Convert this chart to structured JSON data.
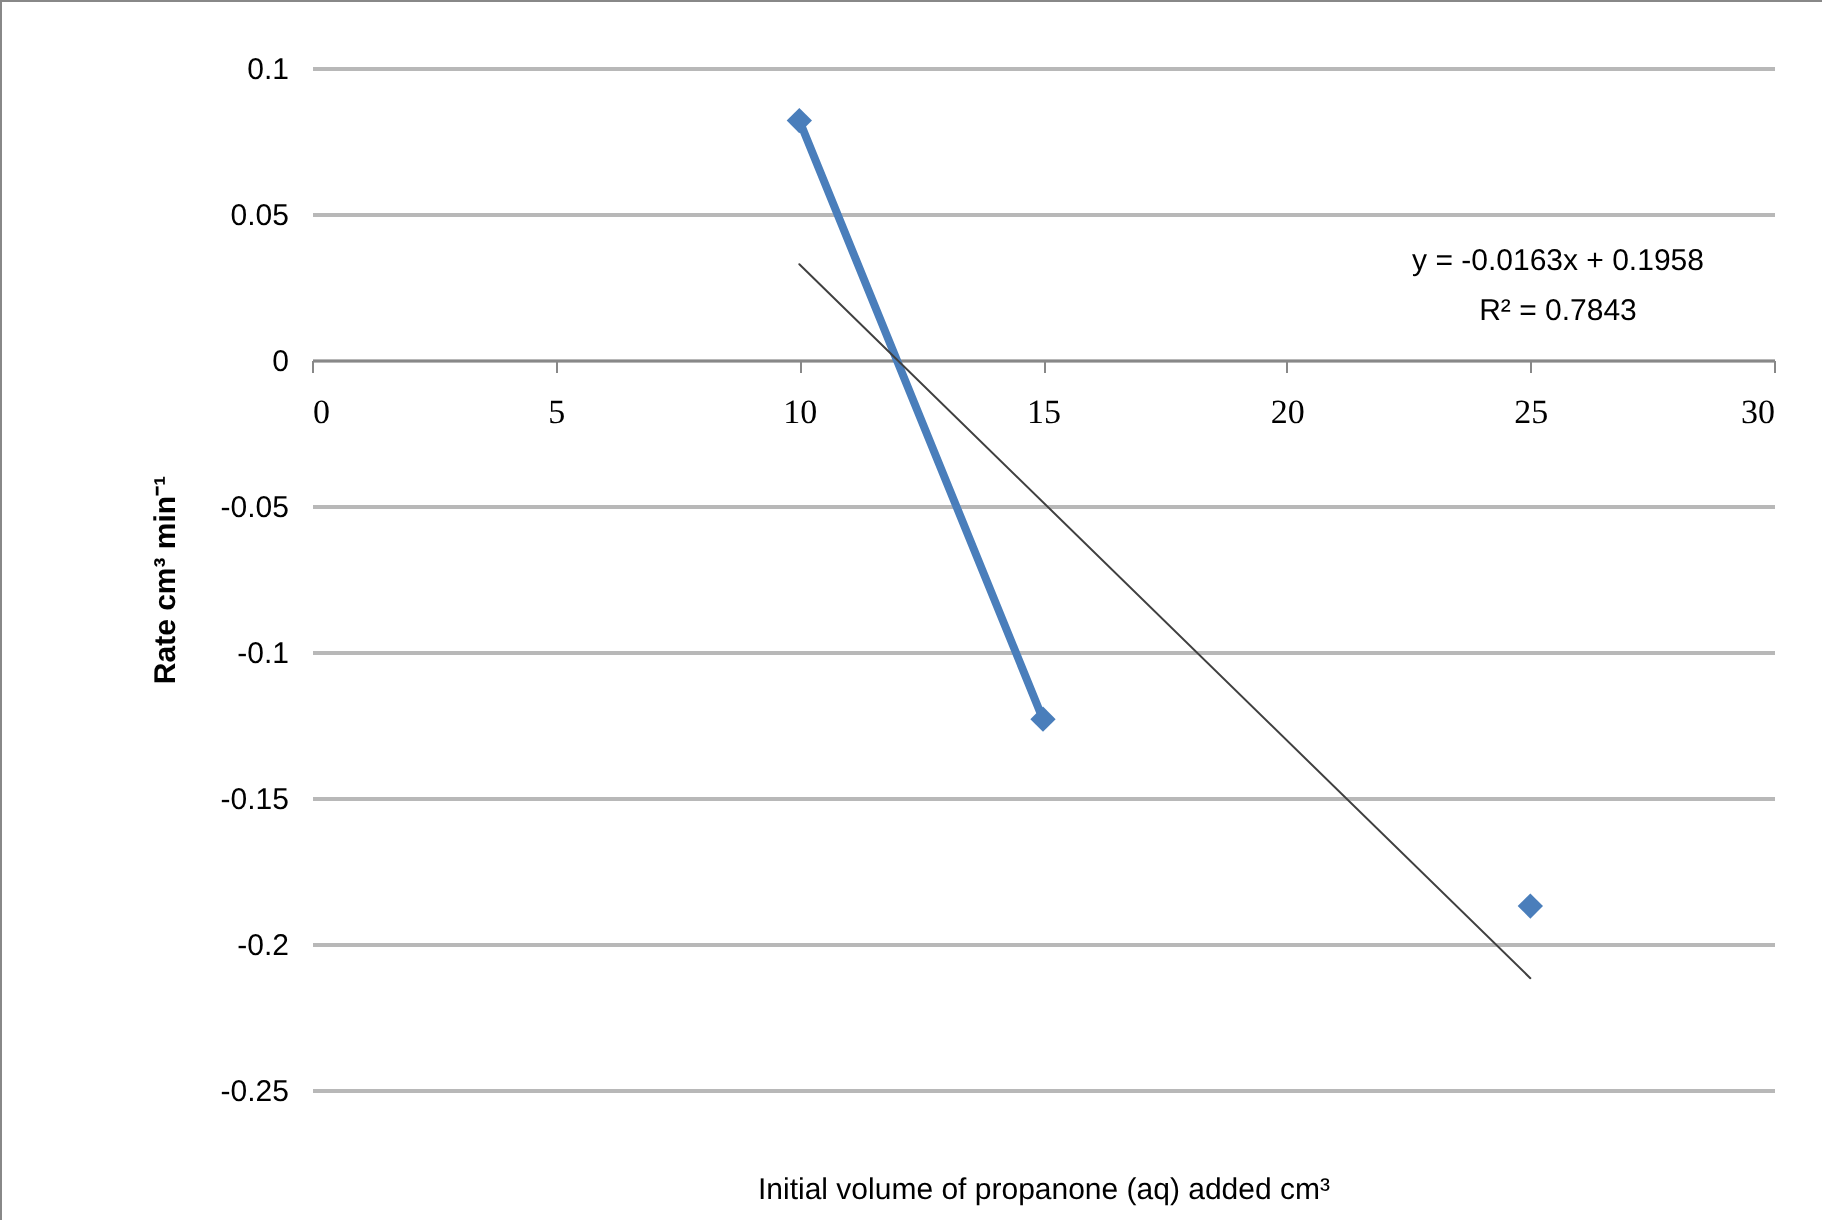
{
  "chart_data": {
    "type": "line",
    "xlabel": "Initial volume of propanone (aq) added cm³",
    "ylabel": "Rate cm³ min⁻¹",
    "annotations": [
      "y = -0.0163x + 0.1958",
      "R² = 0.7843"
    ],
    "series": [
      {
        "color": "#4a7ebb",
        "x": [
          10,
          15
        ],
        "values": [
          0.082,
          -0.123
        ]
      },
      {
        "type": "scatter",
        "color": "#4a7ebb",
        "x": [
          25
        ],
        "values": [
          -0.187
        ]
      },
      {
        "type": "line",
        "color": "#404040",
        "marker": "none",
        "x": [
          10,
          25
        ],
        "values": [
          0.0328,
          -0.2117
        ]
      }
    ],
    "xlim": [
      0,
      30
    ],
    "xticks": [
      0,
      5,
      10,
      15,
      20,
      25,
      30
    ],
    "ylim": [
      -0.25,
      0.1
    ],
    "yticks": [
      -0.25,
      -0.2,
      -0.15,
      -0.1,
      -0.05,
      0,
      0.05,
      0.1
    ],
    "grid": "y",
    "marker": "diamond"
  }
}
